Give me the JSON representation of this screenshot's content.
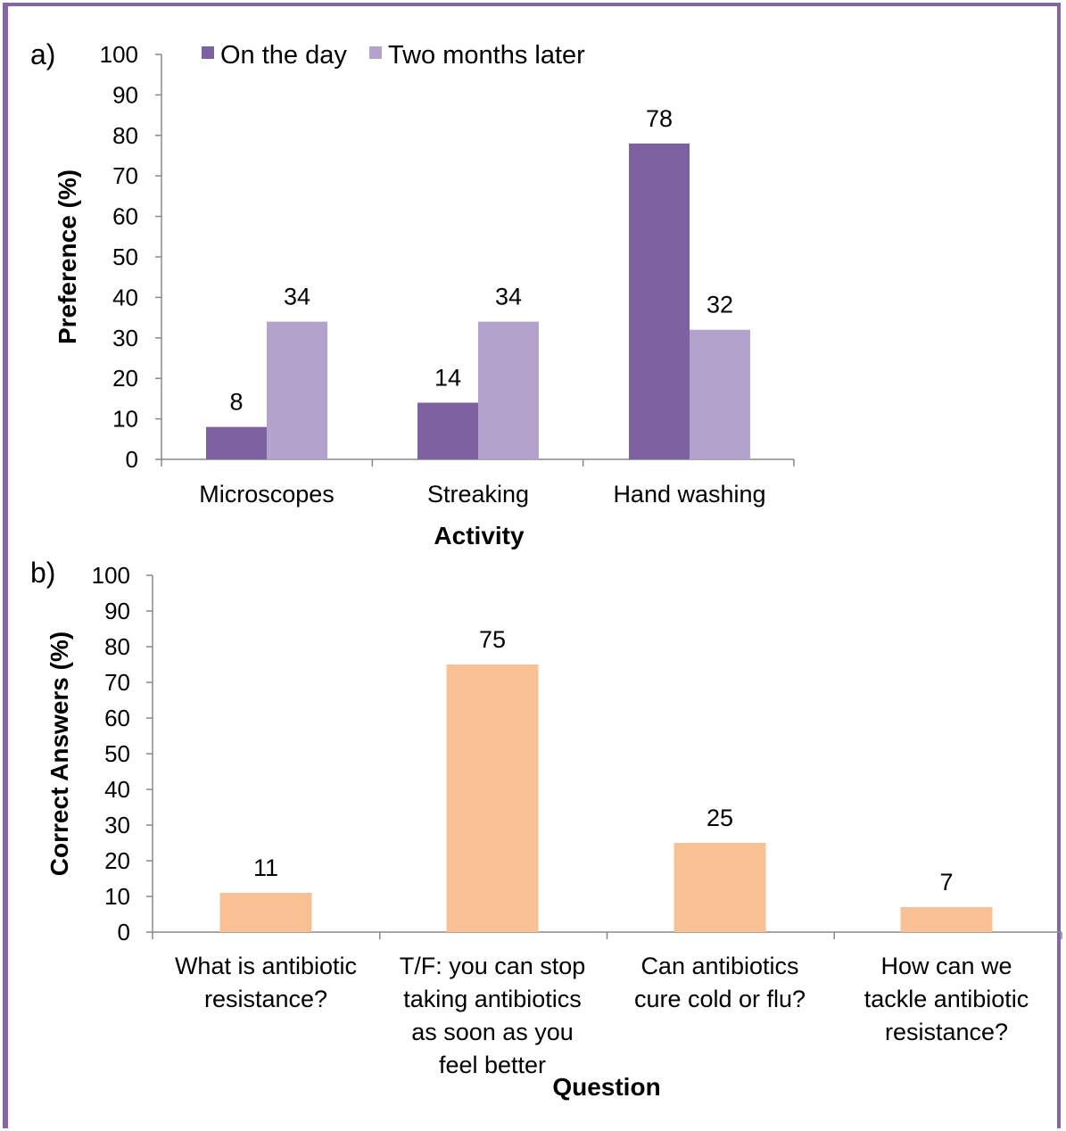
{
  "colors": {
    "frame": "#8466a8",
    "on_day": "#7d61a0",
    "later": "#b3a2cb",
    "orange": "#f9c093",
    "axis": "#888888"
  },
  "chart_data": [
    {
      "panel": "a)",
      "type": "bar",
      "categories": [
        "Microscopes",
        "Streaking",
        "Hand washing"
      ],
      "series": [
        {
          "name": "On the day",
          "values": [
            8,
            14,
            78
          ]
        },
        {
          "name": "Two months later",
          "values": [
            34,
            34,
            32
          ]
        }
      ],
      "xlabel": "Activity",
      "ylabel": "Preference (%)",
      "ylim": [
        0,
        100
      ],
      "yticks": [
        0,
        10,
        20,
        30,
        40,
        50,
        60,
        70,
        80,
        90,
        100
      ],
      "legend": "top",
      "grid": false
    },
    {
      "panel": "b)",
      "type": "bar",
      "categories": [
        [
          "What is antibiotic",
          "resistance?"
        ],
        [
          "T/F: you can stop",
          "taking antibiotics",
          "as soon as you",
          "feel better"
        ],
        [
          "Can antibiotics",
          "cure cold or flu?"
        ],
        [
          "How can we",
          "tackle antibiotic",
          "resistance?"
        ]
      ],
      "series": [
        {
          "values": [
            11,
            75,
            25,
            7
          ]
        }
      ],
      "xlabel": "Question",
      "ylabel": "Correct Answers (%)",
      "ylim": [
        0,
        100
      ],
      "yticks": [
        0,
        10,
        20,
        30,
        40,
        50,
        60,
        70,
        80,
        90,
        100
      ],
      "grid": false
    }
  ]
}
